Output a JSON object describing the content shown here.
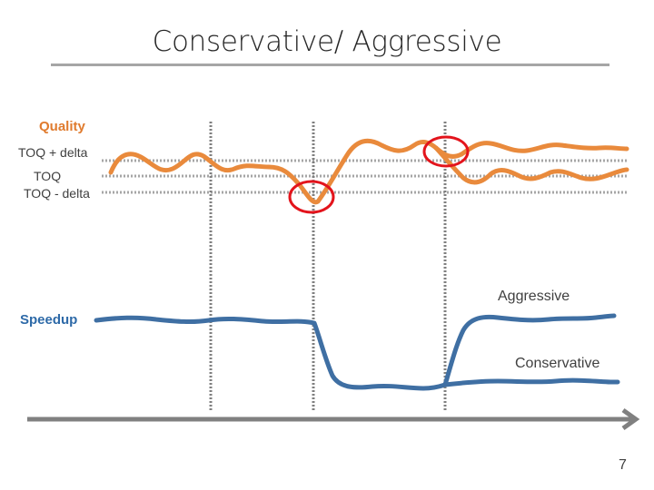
{
  "slide": {
    "title": "Conservative/ Aggressive",
    "page_number": "7"
  },
  "labels": {
    "quality": "Quality",
    "toq_plus_delta": "TOQ + delta",
    "toq": "TOQ",
    "toq_minus_delta": "TOQ - delta",
    "speedup": "Speedup",
    "aggressive": "Aggressive",
    "conservative": "Conservative"
  },
  "colors": {
    "quality_line": "#e98a3c",
    "speedup_line": "#3f6fa3",
    "highlight_circle": "#e3141c",
    "reference_line": "#a6a6a6",
    "time_axis": "#808080"
  }
}
